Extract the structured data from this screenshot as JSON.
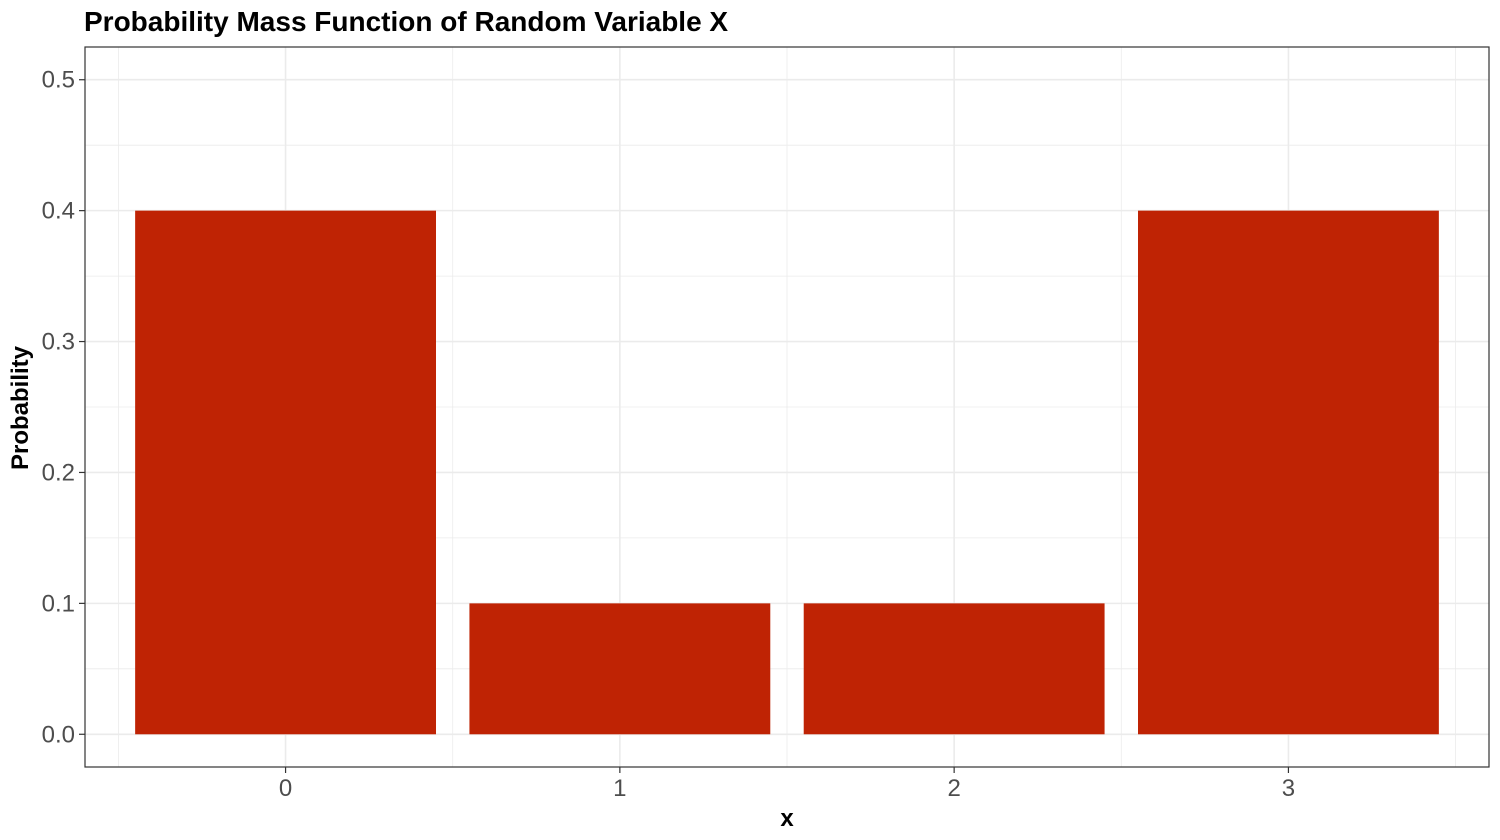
{
  "chart_data": {
    "type": "bar",
    "title": "Probability Mass Function of Random Variable X",
    "xlabel": "x",
    "ylabel": "Probability",
    "categories": [
      "0",
      "1",
      "2",
      "3"
    ],
    "values": [
      0.4,
      0.1,
      0.1,
      0.4
    ],
    "ylim": [
      -0.025,
      0.525
    ],
    "yticks": [
      0.0,
      0.1,
      0.2,
      0.3,
      0.4,
      0.5
    ],
    "ytick_labels": [
      "0.0",
      "0.1",
      "0.2",
      "0.3",
      "0.4",
      "0.5"
    ],
    "grid": true,
    "legend": "none",
    "bar_color": "#BF2304",
    "grid_color": "#EBEBEB",
    "panel_border_color": "#333333"
  }
}
